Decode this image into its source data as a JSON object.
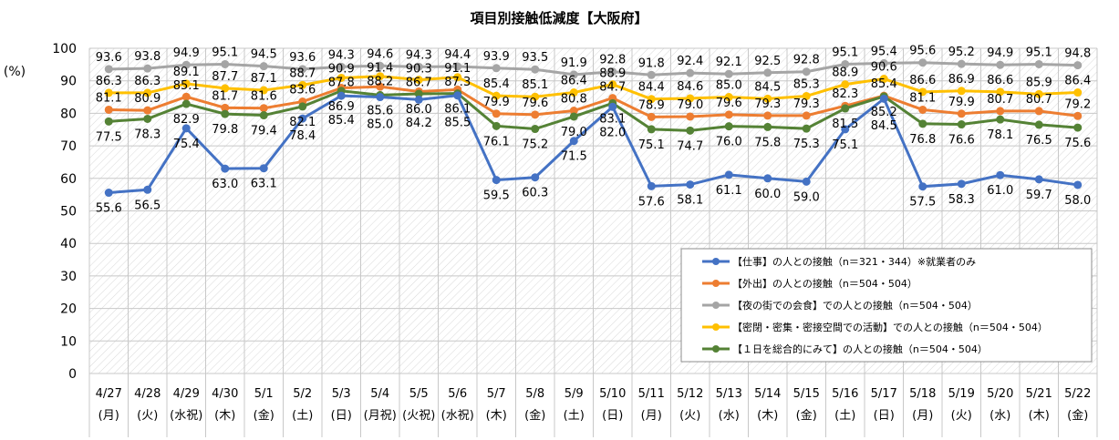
{
  "chart_data": {
    "type": "line",
    "title": "項目別接触低減度【大阪府】",
    "ylabel": "(%)",
    "ylim": [
      0,
      100
    ],
    "yticks": [
      0,
      10,
      20,
      30,
      40,
      50,
      60,
      70,
      80,
      90,
      100
    ],
    "grid": true,
    "legend_placement": "bottom-right",
    "categories": [
      "4/27",
      "4/28",
      "4/29",
      "4/30",
      "5/1",
      "5/2",
      "5/3",
      "5/4",
      "5/5",
      "5/6",
      "5/7",
      "5/8",
      "5/9",
      "5/10",
      "5/11",
      "5/12",
      "5/13",
      "5/14",
      "5/15",
      "5/16",
      "5/17",
      "5/18",
      "5/19",
      "5/20",
      "5/21",
      "5/22"
    ],
    "weekdays": [
      "(月)",
      "(火)",
      "(水祝)",
      "(木)",
      "(金)",
      "(土)",
      "(日)",
      "(月祝)",
      "(火祝)",
      "(水祝)",
      "(木)",
      "(金)",
      "(土)",
      "(日)",
      "(月)",
      "(火)",
      "(水)",
      "(木)",
      "(金)",
      "(土)",
      "(日)",
      "(月)",
      "(火)",
      "(水)",
      "(木)",
      "(金)"
    ],
    "series": [
      {
        "name": "【仕事】の人との接触（n＝321・344）※就業者のみ",
        "color": "#4472C4",
        "label_pos": "below",
        "values": [
          55.6,
          56.5,
          75.4,
          63.0,
          63.1,
          78.4,
          85.4,
          85.0,
          84.2,
          85.5,
          59.5,
          60.3,
          71.5,
          82.0,
          57.6,
          58.1,
          61.1,
          60.0,
          59.0,
          75.1,
          84.5,
          57.5,
          58.3,
          61.0,
          59.7,
          58.0
        ]
      },
      {
        "name": "【外出】の人との接触（n＝504・504）",
        "color": "#ED7D31",
        "label_pos": "above",
        "values": [
          81.1,
          80.9,
          85.1,
          81.7,
          81.6,
          83.6,
          87.8,
          88.2,
          86.7,
          87.3,
          79.9,
          79.6,
          80.8,
          84.7,
          78.9,
          79.0,
          79.6,
          79.3,
          79.3,
          82.3,
          85.4,
          81.1,
          79.9,
          80.7,
          80.7,
          79.2
        ]
      },
      {
        "name": "【夜の街での会食】での人との接触（n＝504・504）",
        "color": "#A5A5A5",
        "label_pos": "above",
        "values": [
          93.6,
          93.8,
          94.9,
          95.1,
          94.5,
          93.6,
          94.3,
          94.6,
          94.3,
          94.4,
          93.9,
          93.5,
          91.9,
          92.8,
          91.8,
          92.4,
          92.1,
          92.5,
          92.8,
          95.1,
          95.4,
          95.6,
          95.2,
          94.9,
          95.1,
          94.8
        ]
      },
      {
        "name": "【密閉・密集・密接空間での活動】での人との接触（n＝504・504）",
        "color": "#FFC000",
        "label_pos": "above",
        "values": [
          86.3,
          86.3,
          89.1,
          87.7,
          87.1,
          88.7,
          90.9,
          91.4,
          90.3,
          91.1,
          85.4,
          85.1,
          86.4,
          88.9,
          84.4,
          84.6,
          85.0,
          84.5,
          85.3,
          88.9,
          90.6,
          86.6,
          86.9,
          86.6,
          85.9,
          86.4
        ]
      },
      {
        "name": "【１日を総合的にみて】の人との接触（n＝504・504）",
        "color": "#548235",
        "label_pos": "below",
        "values": [
          77.5,
          78.3,
          82.9,
          79.8,
          79.4,
          82.1,
          86.9,
          85.6,
          86.0,
          86.1,
          76.1,
          75.2,
          79.0,
          83.1,
          75.1,
          74.7,
          76.0,
          75.8,
          75.3,
          81.5,
          85.2,
          76.8,
          76.6,
          78.1,
          76.5,
          75.6
        ]
      }
    ]
  }
}
